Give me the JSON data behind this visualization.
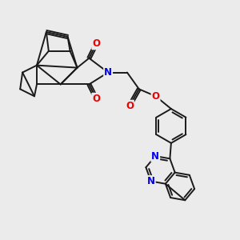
{
  "bg_color": "#ebebeb",
  "bond_color": "#1a1a1a",
  "N_color": "#0000ee",
  "O_color": "#ee0000",
  "bond_width": 1.4,
  "figsize": [
    3.0,
    3.0
  ],
  "dpi": 100,
  "xlim": [
    0,
    10
  ],
  "ylim": [
    0,
    10
  ]
}
